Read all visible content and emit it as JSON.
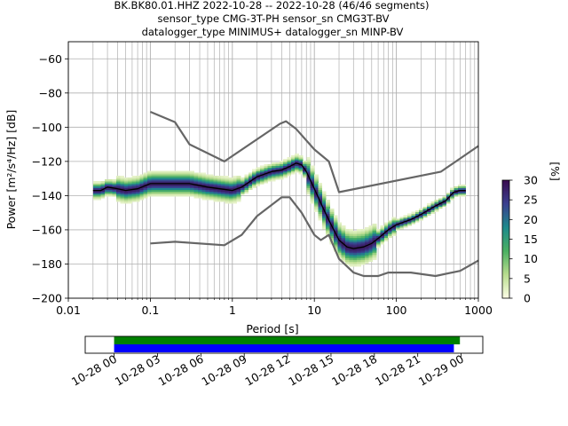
{
  "title_lines": [
    "BK.BK80.01.HHZ   2022-10-28 -- 2022-10-28  (46/46 segments)",
    "sensor_type CMG-3T-PH sensor_sn CMG3T-BV",
    "datalogger_type MINIMUS+ datalogger_sn MINP-BV"
  ],
  "colors": {
    "grid": "#b0b0b0",
    "noise_model": "#666666",
    "mode_line": "#000000",
    "coverage_all": "#0000ff",
    "coverage_used": "#008000",
    "colormap": [
      "#fdfde6",
      "#b8dc8e",
      "#4bb062",
      "#1d8a8c",
      "#3a3f8f",
      "#3a0c4f"
    ]
  },
  "chart_data": [
    {
      "type": "heatmap",
      "name": "ppsd",
      "xlabel": "Period [s]",
      "ylabel": "Power [m²/s⁴/Hz] [dB]",
      "xscale": "log",
      "xlim": [
        0.01,
        1000
      ],
      "ylim": [
        -200,
        -50
      ],
      "xticks": [
        0.01,
        0.1,
        1,
        10,
        100,
        1000
      ],
      "xtick_labels": [
        "0.01",
        "0.1",
        "1",
        "10",
        "100",
        "1000"
      ],
      "yticks": [
        -200,
        -180,
        -160,
        -140,
        -120,
        -100,
        -80,
        -60
      ],
      "ytick_labels": [
        "−200",
        "−180",
        "−160",
        "−140",
        "−120",
        "−100",
        "−80",
        "−60"
      ],
      "grid": true,
      "mode_curve": {
        "x": [
          0.02,
          0.025,
          0.03,
          0.04,
          0.05,
          0.07,
          0.1,
          0.15,
          0.2,
          0.3,
          0.5,
          0.7,
          1.0,
          1.3,
          2.0,
          3.0,
          4.0,
          5.0,
          6.0,
          7.0,
          8.0,
          10.0,
          13.0,
          16.0,
          20.0,
          25.0,
          30.0,
          40.0,
          50.0,
          60.0,
          80.0,
          100.0,
          150.0,
          200.0,
          300.0,
          400.0,
          500.0,
          600.0,
          700.0
        ],
        "y": [
          -137,
          -137,
          -135,
          -136,
          -137,
          -136,
          -133,
          -133,
          -133,
          -133,
          -135,
          -136,
          -137,
          -135,
          -129,
          -126,
          -125,
          -123,
          -121,
          -122,
          -126,
          -136,
          -148,
          -157,
          -166,
          -170,
          -171,
          -170,
          -168,
          -165,
          -160,
          -157,
          -154,
          -151,
          -146,
          -143,
          -138,
          -137,
          -137
        ]
      },
      "noise_models": [
        {
          "x": [
            0.1,
            0.2,
            0.3,
            0.8,
            3.8,
            4.5,
            6.0,
            10.0,
            15.0,
            20.0,
            350.0,
            1000.0
          ],
          "y": [
            -91,
            -97,
            -110,
            -120,
            -98,
            -96.5,
            -101,
            -113,
            -120,
            -138,
            -126,
            -111
          ]
        },
        {
          "x": [
            0.1,
            0.2,
            0.8,
            1.3,
            2.0,
            4.0,
            5.0,
            7.0,
            10.0,
            12.0,
            15.0,
            20.0,
            30.0,
            40.0,
            60.0,
            80.0,
            100.0,
            150.0,
            300.0,
            600.0,
            1000.0
          ],
          "y": [
            -168,
            -167,
            -169,
            -163,
            -152,
            -141,
            -141,
            -150,
            -163,
            -166,
            -163,
            -177,
            -185,
            -187,
            -187,
            -185,
            -185,
            -185,
            -187,
            -184,
            -178
          ]
        }
      ]
    },
    {
      "type": "bar",
      "name": "colorbar",
      "ylabel": "[%]",
      "ylim": [
        0,
        30
      ],
      "yticks": [
        0,
        5,
        10,
        15,
        20,
        25,
        30
      ],
      "ytick_labels": [
        "0",
        "5",
        "10",
        "15",
        "20",
        "25",
        "30"
      ]
    },
    {
      "type": "bar",
      "name": "data coverage",
      "xlim": [
        "2022-10-27 22:00",
        "2022-10-29 01:30"
      ],
      "xtick_labels": [
        "10-28 00",
        "10-28 03",
        "10-28 06",
        "10-28 09",
        "10-28 12",
        "10-28 15",
        "10-28 18",
        "10-28 21",
        "10-29 00"
      ],
      "bars": [
        {
          "row": "used",
          "start": "2022-10-28 00:00",
          "end": "2022-10-28 23:55"
        },
        {
          "row": "all",
          "start": "2022-10-28 00:00",
          "end": "2022-10-28 23:30"
        }
      ]
    }
  ]
}
